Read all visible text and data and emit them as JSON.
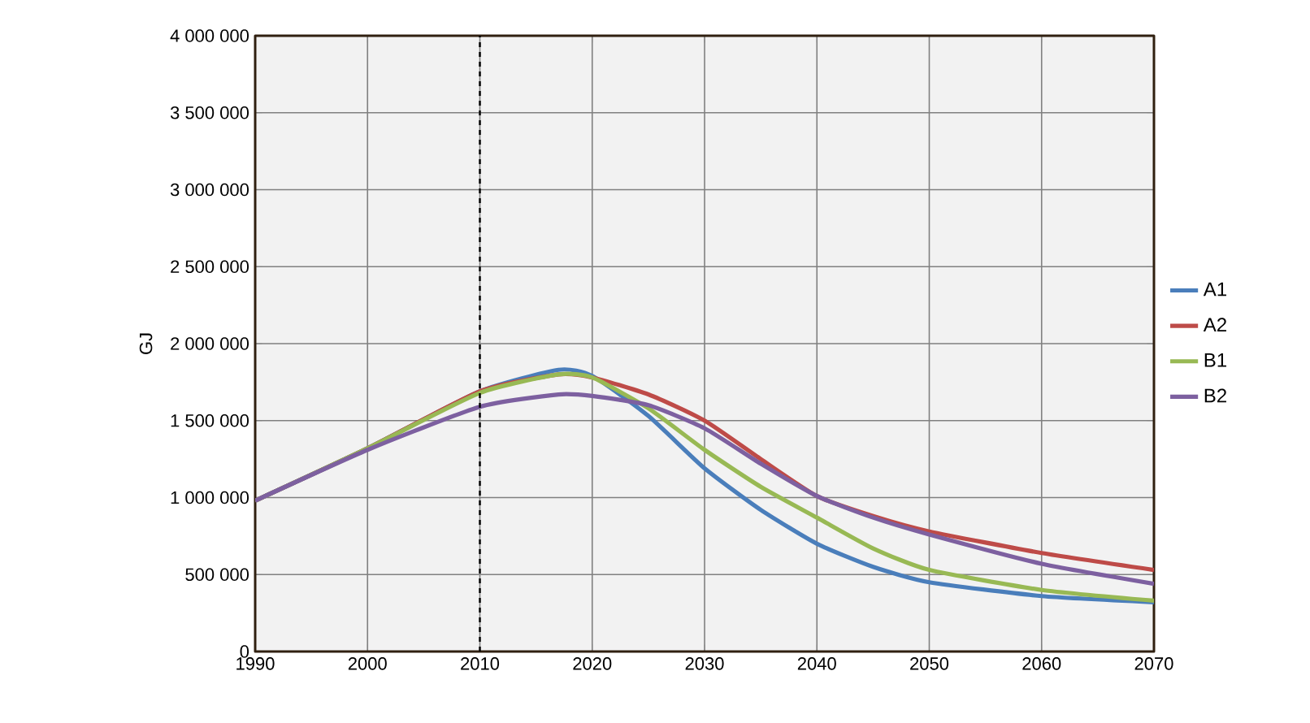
{
  "chart_data": {
    "type": "line",
    "ylabel": "GJ",
    "x": [
      1990,
      2000,
      2010,
      2017,
      2020,
      2025,
      2030,
      2035,
      2040,
      2045,
      2050,
      2060,
      2070
    ],
    "series": [
      {
        "name": "A1",
        "color": "#4a7ebb",
        "values": [
          980000,
          1320000,
          1690000,
          1830000,
          1790000,
          1530000,
          1190000,
          920000,
          700000,
          550000,
          450000,
          360000,
          320000
        ]
      },
      {
        "name": "A2",
        "color": "#be4b48",
        "values": [
          980000,
          1320000,
          1690000,
          1800000,
          1780000,
          1670000,
          1500000,
          1250000,
          1010000,
          880000,
          780000,
          640000,
          530000
        ]
      },
      {
        "name": "B1",
        "color": "#98b954",
        "values": [
          980000,
          1320000,
          1680000,
          1800000,
          1780000,
          1580000,
          1310000,
          1070000,
          870000,
          670000,
          530000,
          400000,
          330000
        ]
      },
      {
        "name": "B2",
        "color": "#7d60a0",
        "values": [
          980000,
          1310000,
          1590000,
          1670000,
          1660000,
          1600000,
          1450000,
          1220000,
          1010000,
          870000,
          760000,
          570000,
          440000
        ]
      }
    ],
    "xlim": [
      1990,
      2070
    ],
    "xticks": [
      1990,
      2000,
      2010,
      2020,
      2030,
      2040,
      2050,
      2060,
      2070
    ],
    "ylim": [
      0,
      4000000
    ],
    "yticks": [
      {
        "value": 0,
        "label": "0"
      },
      {
        "value": 500000,
        "label": "500 000"
      },
      {
        "value": 1000000,
        "label": "1 000 000"
      },
      {
        "value": 1500000,
        "label": "1 500 000"
      },
      {
        "value": 2000000,
        "label": "2 000 000"
      },
      {
        "value": 2500000,
        "label": "2 500 000"
      },
      {
        "value": 3000000,
        "label": "3 000 000"
      },
      {
        "value": 3500000,
        "label": "3 500 000"
      },
      {
        "value": 4000000,
        "label": "4 000 000"
      }
    ],
    "ref_lines": [
      {
        "axis": "x",
        "value": 2010,
        "color": "#000000",
        "line_style": "dashed"
      }
    ],
    "grid": true,
    "legend": "right",
    "marker": "none",
    "line_style": "solid"
  }
}
